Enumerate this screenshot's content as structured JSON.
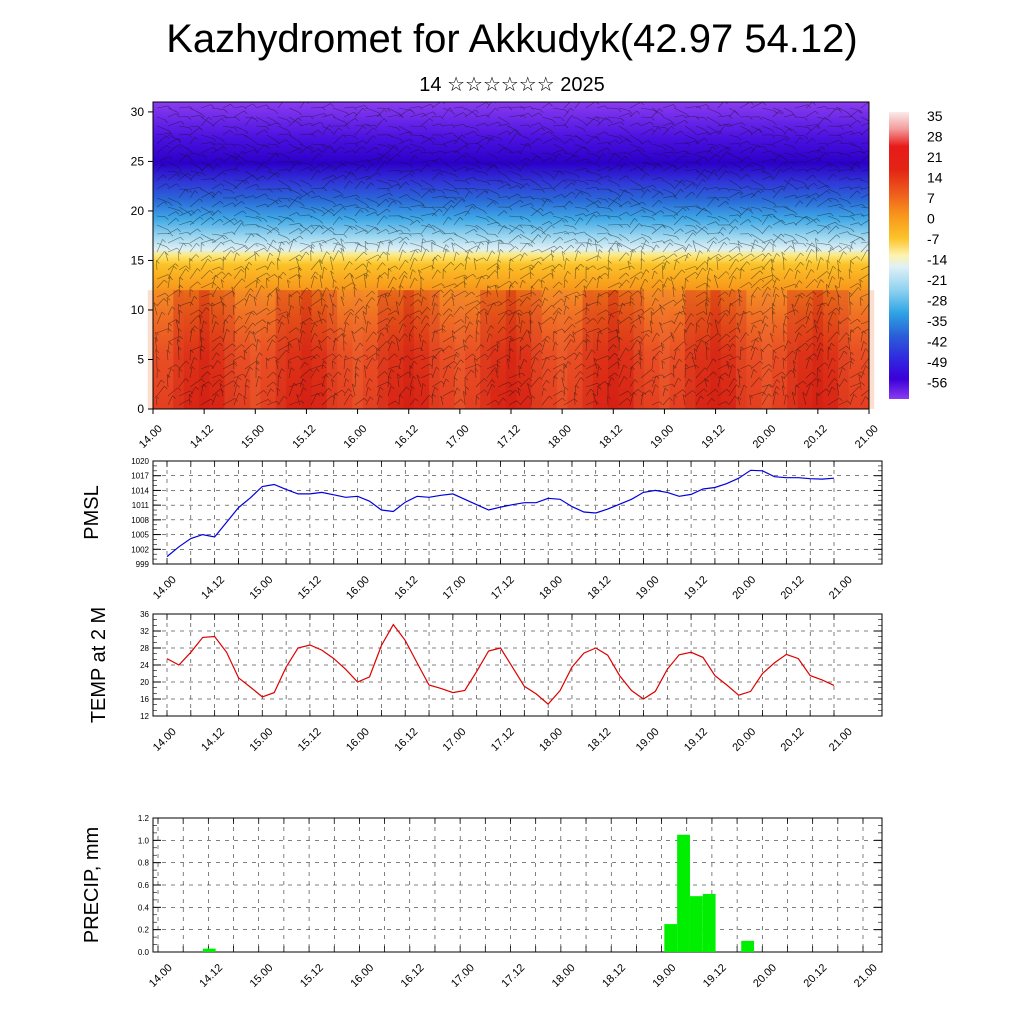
{
  "title": "Kazhydromet for Akkudyk(42.97 54.12)",
  "subtitle": "14 ☆☆☆☆☆☆ 2025",
  "chart_data": [
    {
      "type": "heatmap",
      "xticks": [
        "14.00",
        "14.12",
        "15.00",
        "15.12",
        "16.00",
        "16.12",
        "17.00",
        "17.12",
        "18.00",
        "18.12",
        "19.00",
        "19.12",
        "20.00",
        "20.12",
        "21.00"
      ],
      "yticks": [
        "0",
        "5",
        "10",
        "15",
        "20",
        "25",
        "30"
      ],
      "ylim": [
        0,
        31
      ],
      "colorbar_labels": [
        "35",
        "28",
        "21",
        "14",
        "7",
        "0",
        "-7",
        "-14",
        "-21",
        "-28",
        "-35",
        "-42",
        "-49",
        "-56"
      ],
      "overlay": "wind barbs",
      "colors": [
        "#fbeaea",
        "#f6b8b8",
        "#f04040",
        "#e6281f",
        "#f0601c",
        "#f89a1c",
        "#fbc420",
        "#fde56a",
        "#fff7c8",
        "#cfeaf4",
        "#8fd4f0",
        "#3fb2e8",
        "#2a78d8",
        "#3a46e0",
        "#3d00e0",
        "#7a28f0"
      ]
    },
    {
      "type": "line",
      "ylabel": "PMSL",
      "xticks": [
        "14.00",
        "14.12",
        "15.00",
        "15.12",
        "16.00",
        "16.12",
        "17.00",
        "17.12",
        "18.00",
        "18.12",
        "19.00",
        "19.12",
        "20.00",
        "20.12",
        "21.00"
      ],
      "yticks": [
        "999",
        "1002",
        "1005",
        "1008",
        "1011",
        "1014",
        "1017",
        "1020"
      ],
      "ylim": [
        999,
        1020
      ],
      "color": "#0000dd",
      "values": [
        1000.5,
        1002.5,
        1004.2,
        1005,
        1004.5,
        1007.5,
        1010.5,
        1012.5,
        1014.8,
        1015.2,
        1014.2,
        1013.3,
        1013.3,
        1013.6,
        1013.1,
        1012.6,
        1012.8,
        1011.8,
        1010,
        1009.7,
        1011.6,
        1012.8,
        1012.6,
        1013,
        1013.3,
        1012.2,
        1011.1,
        1010,
        1010.6,
        1011.1,
        1011.5,
        1011.5,
        1012.4,
        1012.2,
        1010.7,
        1009.6,
        1009.4,
        1010.2,
        1011.2,
        1012.2,
        1013.6,
        1014,
        1013.6,
        1012.8,
        1013.2,
        1014.3,
        1014.6,
        1015.4,
        1016.5,
        1018.1,
        1018,
        1016.8,
        1016.6,
        1016.6,
        1016.4,
        1016.3,
        1016.5
      ]
    },
    {
      "type": "line",
      "ylabel": "TEMP at 2 M",
      "xticks": [
        "14.00",
        "14.12",
        "15.00",
        "15.12",
        "16.00",
        "16.12",
        "17.00",
        "17.12",
        "18.00",
        "18.12",
        "19.00",
        "19.12",
        "20.00",
        "20.12",
        "21.00"
      ],
      "yticks": [
        "12",
        "16",
        "20",
        "24",
        "28",
        "32",
        "36"
      ],
      "ylim": [
        12,
        36
      ],
      "color": "#dd0000",
      "values": [
        25.5,
        24,
        27,
        30.5,
        30.7,
        27,
        21,
        18.8,
        16.5,
        17.5,
        23.5,
        28,
        28.7,
        27.5,
        25.5,
        23,
        20,
        21.2,
        28.6,
        33.5,
        29.8,
        24.5,
        19.3,
        18.5,
        17.5,
        18,
        22.5,
        27.3,
        28,
        23.5,
        19,
        17.2,
        14.8,
        18,
        23.5,
        26.8,
        28,
        26.3,
        21.5,
        18,
        16,
        17.8,
        23,
        26.4,
        27,
        25.8,
        21.5,
        19.3,
        16.9,
        17.8,
        22,
        24.5,
        26.5,
        25.5,
        21.5,
        20.5,
        19.2
      ]
    },
    {
      "type": "bar",
      "ylabel": "PRECIP, mm",
      "xticks": [
        "14.00",
        "14.12",
        "15.00",
        "15.12",
        "16.00",
        "16.12",
        "17.00",
        "17.12",
        "18.00",
        "18.12",
        "19.00",
        "19.12",
        "20.00",
        "20.12",
        "21.00"
      ],
      "yticks": [
        "0.0",
        "0.2",
        "0.4",
        "0.6",
        "0.8",
        "1.0",
        "1.2"
      ],
      "ylim": [
        0,
        1.2
      ],
      "color": "#00ee00",
      "values": [
        0,
        0,
        0,
        0,
        0.03,
        0,
        0,
        0,
        0,
        0,
        0,
        0,
        0,
        0,
        0,
        0,
        0,
        0,
        0,
        0,
        0,
        0,
        0,
        0,
        0,
        0,
        0,
        0,
        0,
        0,
        0,
        0,
        0,
        0,
        0,
        0,
        0,
        0,
        0,
        0,
        0.25,
        1.05,
        0.5,
        0.52,
        0,
        0,
        0.1,
        0,
        0,
        0,
        0,
        0,
        0,
        0,
        0,
        0
      ]
    }
  ]
}
